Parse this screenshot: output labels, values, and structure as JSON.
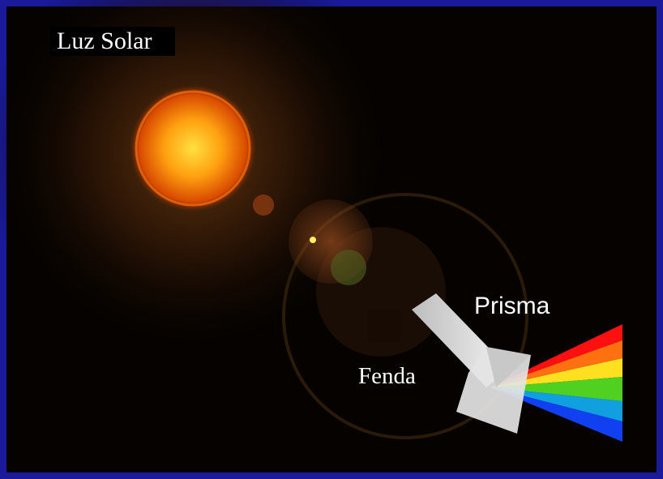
{
  "labels": {
    "sun": "Luz Solar",
    "prism": "Prisma",
    "slit": "Fenda"
  }
}
